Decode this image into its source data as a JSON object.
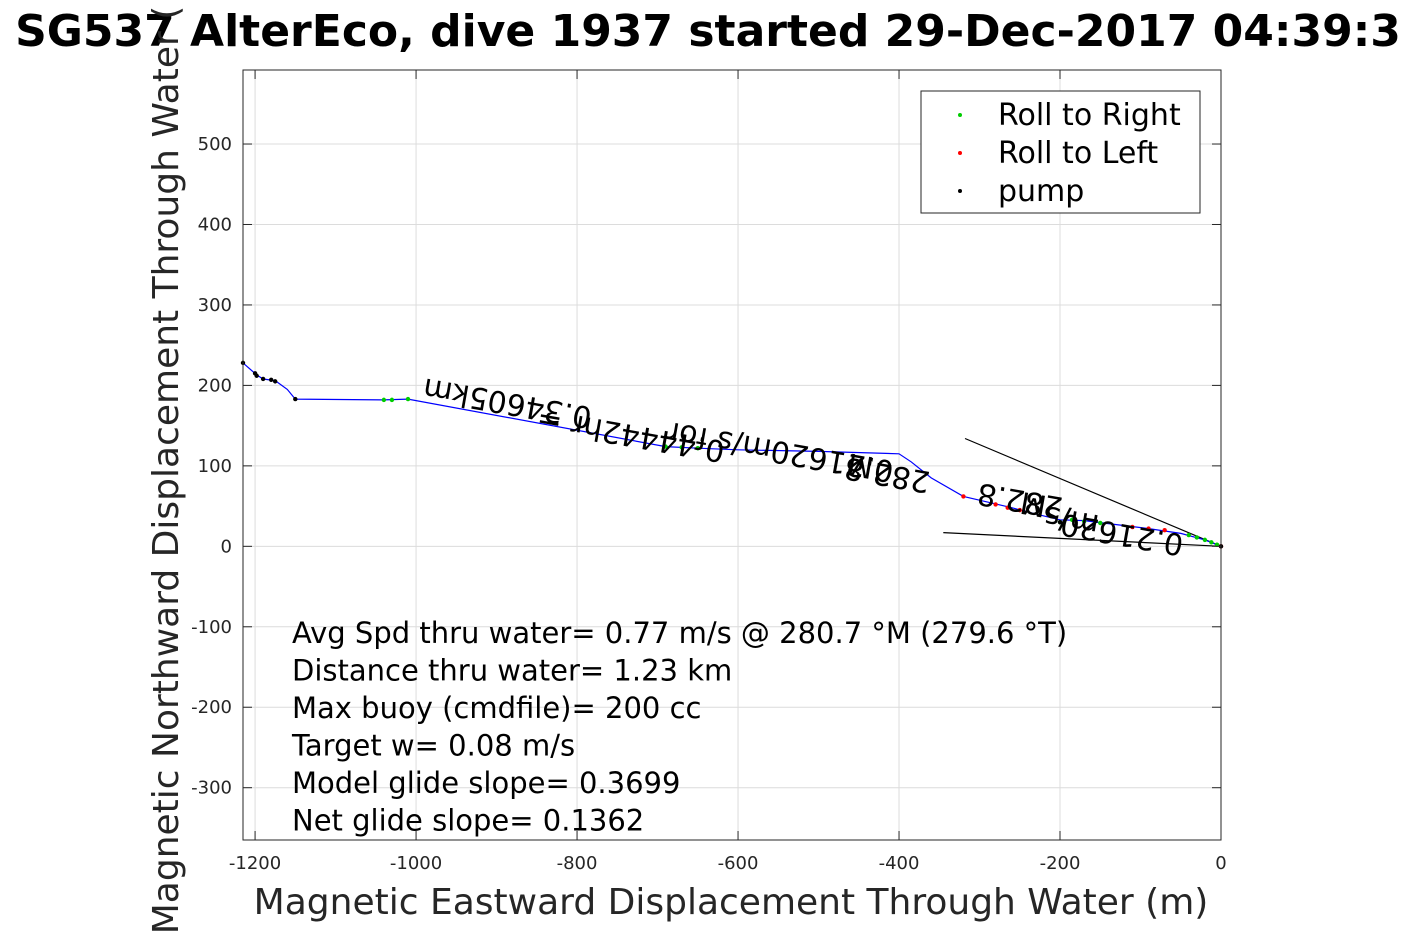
{
  "chart_data": {
    "type": "line",
    "title": "SG537 AlterEco, dive 1937 started 29-Dec-2017 04:39:3",
    "xlabel": "Magnetic Eastward Displacement Through Water (m)",
    "ylabel": "Magnetic Northward Displacement Through Water (",
    "xlim": [
      -1215,
      0
    ],
    "ylim": [
      -365,
      592
    ],
    "xticks": [
      -1200,
      -1000,
      -800,
      -600,
      -400,
      -200,
      0
    ],
    "yticks": [
      -300,
      -200,
      -100,
      0,
      100,
      200,
      300,
      400,
      500
    ],
    "grid": true,
    "legend_position": "top-right",
    "legend": [
      {
        "label": "Roll to Right",
        "color": "#00cc00"
      },
      {
        "label": "Roll to Left",
        "color": "#ff0000"
      },
      {
        "label": "pump",
        "color": "#000000"
      }
    ],
    "track": {
      "name": "track",
      "color": "#0000ff",
      "x": [
        0,
        -20,
        -50,
        -90,
        -130,
        -170,
        -200,
        -230,
        -260,
        -290,
        -320,
        -360,
        -385,
        -400,
        -500,
        -600,
        -650,
        -690,
        -1010,
        -1040,
        -1150,
        -1160,
        -1175,
        -1190,
        -1198,
        -1215
      ],
      "y": [
        0,
        8,
        16,
        22,
        27,
        32,
        33,
        40,
        48,
        55,
        62,
        85,
        105,
        115,
        118,
        120,
        122,
        124,
        183,
        182,
        183,
        195,
        206,
        208,
        213,
        228
      ]
    },
    "roll_right": {
      "x": [
        -5,
        -12,
        -20,
        -30,
        -40,
        -150,
        -170,
        -185,
        -200,
        -1010,
        -1030,
        -1040,
        -650,
        -670,
        -690
      ],
      "y": [
        2,
        5,
        8,
        11,
        14,
        29,
        31,
        33,
        30,
        183,
        182,
        182,
        122,
        123,
        124
      ]
    },
    "roll_left": {
      "x": [
        0,
        -70,
        -90,
        -110,
        -250,
        -265,
        -280,
        -320
      ],
      "y": [
        0,
        20,
        22,
        24,
        45,
        48,
        52,
        62
      ]
    },
    "pump": {
      "x": [
        -1215,
        -1200,
        -1198,
        -1190,
        -1180,
        -1175,
        -1150,
        -200,
        0
      ],
      "y": [
        228,
        215,
        212,
        208,
        207,
        205,
        183,
        30,
        0
      ]
    },
    "reference_lines": [
      {
        "x": [
          0,
          -318
        ],
        "y": [
          0,
          134
        ]
      },
      {
        "x": [
          0,
          -345
        ],
        "y": [
          0,
          17
        ]
      }
    ],
    "annotations": [
      {
        "text": "0.34605km",
        "x": -780,
        "y": 172,
        "rotation": 190
      },
      {
        "text": "0.44442hr =",
        "x": -615,
        "y": 130,
        "rotation": 190
      },
      {
        "text": "282.8",
        "x": -360,
        "y": 92,
        "rotation": 190
      },
      {
        "text": "0.21620m/s for",
        "x": -405,
        "y": 105,
        "rotation": 190
      },
      {
        "text": "M",
        "x": -430,
        "y": 110,
        "rotation": 190
      },
      {
        "text": "282.8",
        "x": -195,
        "y": 60,
        "rotation": 190
      },
      {
        "text": "M",
        "x": -215,
        "y": 62,
        "rotation": 190
      },
      {
        "text": "0.21620",
        "x": -45,
        "y": 14,
        "rotation": 190
      },
      {
        "text": "m/s",
        "x": -150,
        "y": 38,
        "rotation": 190
      }
    ],
    "stats_lines": [
      "Avg Spd thru water=  0.77 m/s @ 280.7 °M (279.6 °T)",
      "Distance thru water=  1.23 km",
      "Max buoy (cmdfile)= 200 cc",
      "Target w= 0.08 m/s",
      "Model glide slope= 0.3699",
      "Net glide slope= 0.1362"
    ]
  }
}
